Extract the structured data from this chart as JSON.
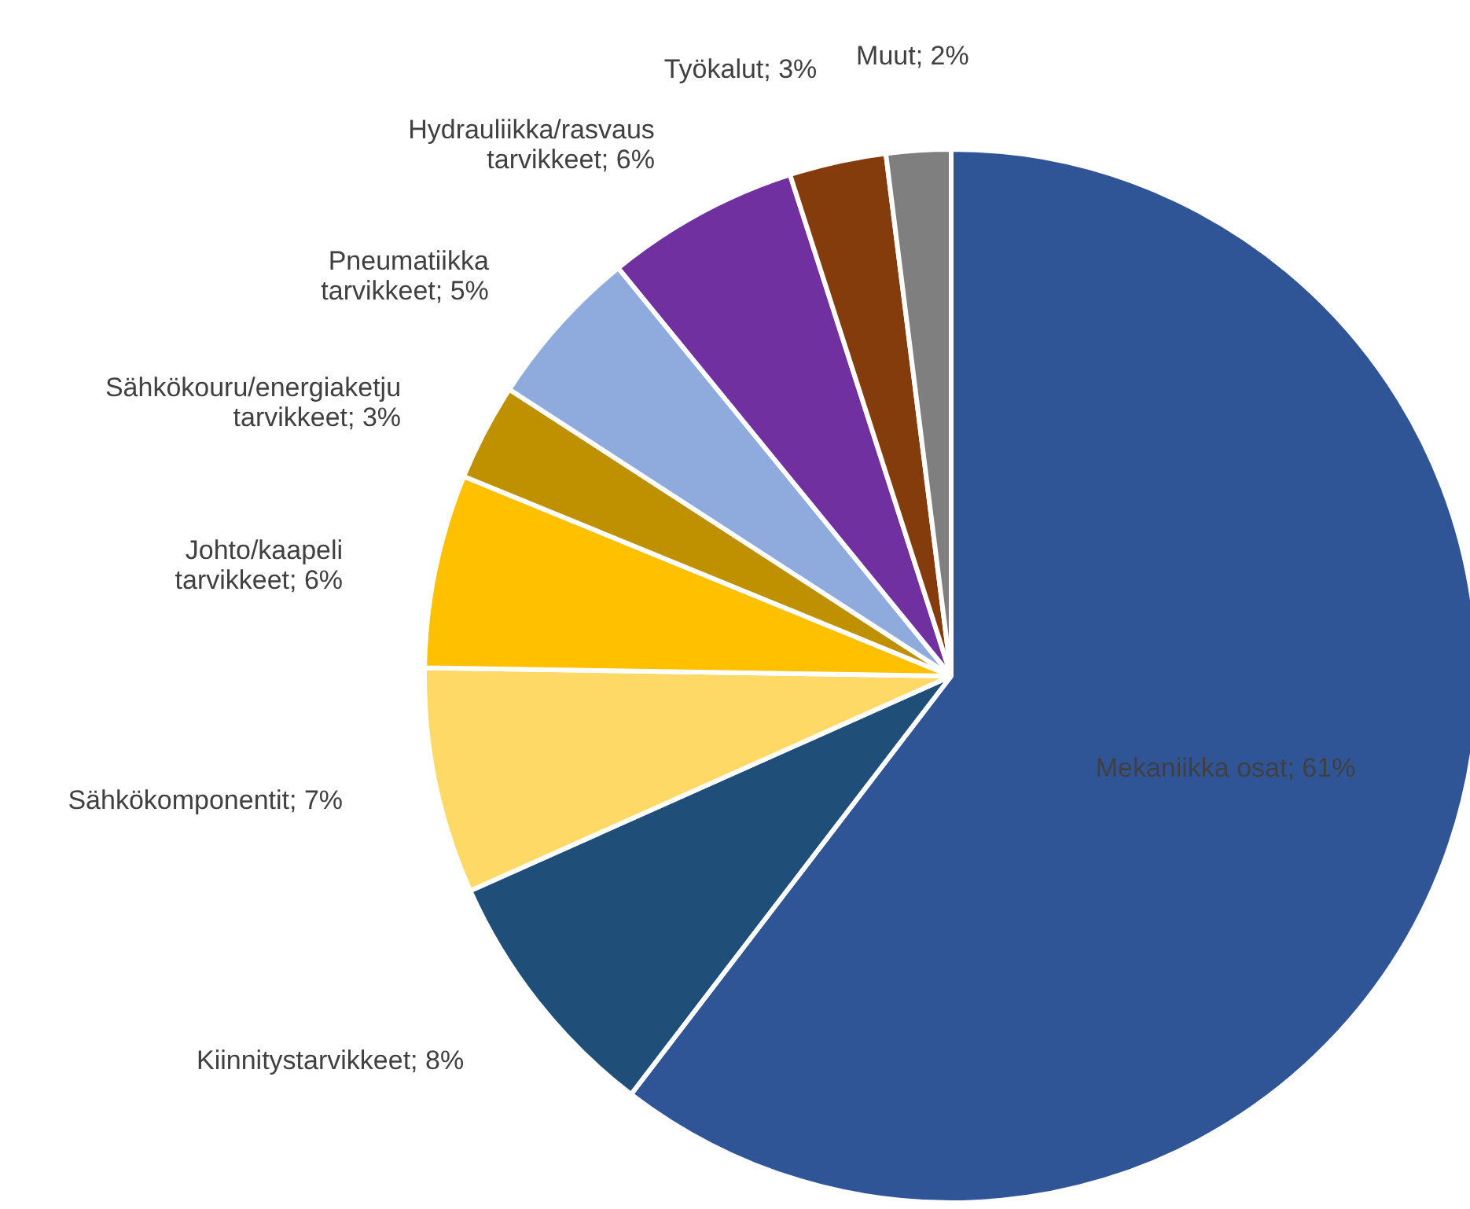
{
  "chart_data": {
    "type": "pie",
    "categories": [
      "Mekaniikka osat; 61%",
      "Kiinnitystarvikkeet; 8%",
      "Sähkökomponentit; 7%",
      "Johto/kaapeli tarvikkeet; 6%",
      "Sähkökouru/energiaketju tarvikkeet; 3%",
      "Pneumatiikka tarvikkeet; 5%",
      "Hydrauliikka/rasvaus tarvikkeet; 6%",
      "Työkalut; 3%",
      "Muut; 2%"
    ],
    "values": [
      61,
      8,
      7,
      6,
      3,
      5,
      6,
      3,
      2
    ],
    "colors": [
      "#2f5597",
      "#1f4e79",
      "#ffd966",
      "#ffc000",
      "#bf9000",
      "#8faadc",
      "#7030a0",
      "#843c0c",
      "#7f7f7f"
    ]
  }
}
